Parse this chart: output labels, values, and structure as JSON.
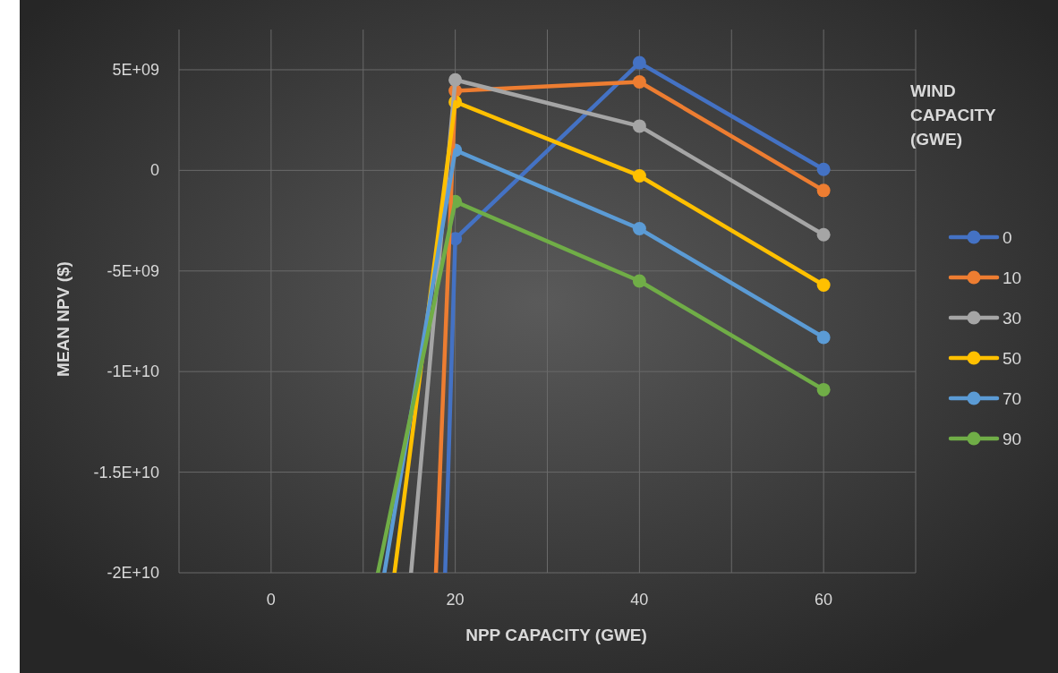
{
  "chart_data": {
    "type": "line",
    "xlabel": "NPP CAPACITY (GWE)",
    "ylabel": "MEAN NPV ($)",
    "legend_title": "WIND CAPACITY (GWE)",
    "legend": "right",
    "grid": true,
    "marker": "circle",
    "line_style": "solid",
    "xlim": [
      -10,
      70
    ],
    "xticks": [
      {
        "value": -10,
        "label": null
      },
      0,
      {
        "value": 10,
        "label": null
      },
      20,
      {
        "value": 30,
        "label": null
      },
      40,
      {
        "value": 50,
        "label": null
      },
      60,
      {
        "value": 70,
        "label": null
      }
    ],
    "ylim": [
      -20000000000,
      7000000000
    ],
    "yticks": [
      {
        "value": -20000000000,
        "label": "-2E+10"
      },
      {
        "value": -15000000000,
        "label": "-1.5E+10"
      },
      {
        "value": -10000000000,
        "label": "-1E+10"
      },
      {
        "value": -5000000000,
        "label": "-5E+09"
      },
      0,
      {
        "value": 5000000000,
        "label": "5E+09"
      }
    ],
    "series": [
      {
        "name": "0",
        "color": "#4472c4",
        "x": [
          20,
          40,
          60
        ],
        "values": [
          -3400000000,
          5350000000,
          50000000
        ]
      },
      {
        "name": "10",
        "color": "#ed7d31",
        "x": [
          20,
          40,
          60
        ],
        "values": [
          3950000000,
          4400000000,
          -1000000000
        ]
      },
      {
        "name": "30",
        "color": "#a5a5a5",
        "x": [
          20,
          40,
          60
        ],
        "values": [
          4500000000,
          2200000000,
          -3200000000
        ]
      },
      {
        "name": "50",
        "color": "#ffc000",
        "x": [
          20,
          40,
          60
        ],
        "values": [
          3400000000,
          -270000000,
          -5700000000
        ]
      },
      {
        "name": "70",
        "color": "#5b9bd5",
        "x": [
          20,
          40,
          60
        ],
        "values": [
          1000000000,
          -2900000000,
          -8300000000
        ]
      },
      {
        "name": "90",
        "color": "#70ad47",
        "x": [
          20,
          40,
          60
        ],
        "values": [
          -1550000000,
          -5500000000,
          -10900000000
        ]
      },
      {
        "color": "#4472c4",
        "marker": "none",
        "x": [
          18.9,
          20
        ],
        "values": [
          -20000000000,
          -3400000000
        ]
      },
      {
        "color": "#ed7d31",
        "marker": "none",
        "x": [
          17.9,
          20
        ],
        "values": [
          -20000000000,
          3950000000
        ]
      },
      {
        "color": "#a5a5a5",
        "marker": "none",
        "x": [
          15.2,
          20
        ],
        "values": [
          -20000000000,
          4500000000
        ]
      },
      {
        "color": "#ffc000",
        "marker": "none",
        "x": [
          13.4,
          20
        ],
        "values": [
          -20000000000,
          3400000000
        ]
      },
      {
        "color": "#5b9bd5",
        "marker": "none",
        "x": [
          12.3,
          20
        ],
        "values": [
          -20000000000,
          1000000000
        ]
      },
      {
        "color": "#70ad47",
        "marker": "none",
        "x": [
          11.6,
          20
        ],
        "values": [
          -20000000000,
          -1550000000
        ]
      }
    ]
  }
}
